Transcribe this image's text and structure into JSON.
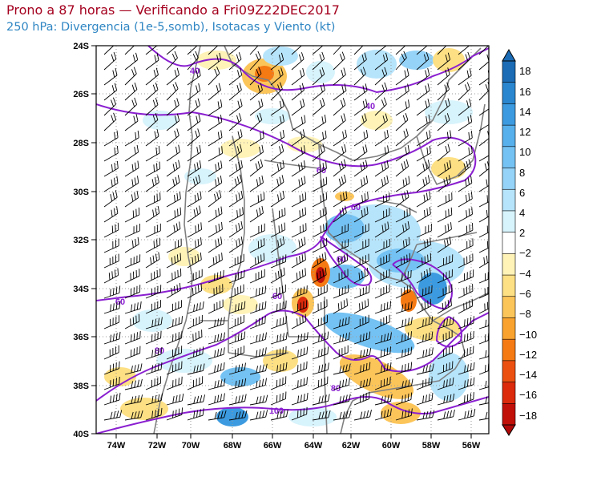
{
  "header": {
    "title": "Prono a 87 horas — Verificando a Fri09Z22DEC2017",
    "subtitle": "250 hPa: Divergencia (1e-5,somb), Isotacas y Viento (kt)"
  },
  "map": {
    "lat_labels": [
      "24S",
      "26S",
      "28S",
      "30S",
      "32S",
      "34S",
      "36S",
      "38S",
      "40S"
    ],
    "lon_labels": [
      "74W",
      "72W",
      "70W",
      "68W",
      "66W",
      "64W",
      "62W",
      "60W",
      "58W",
      "56W"
    ],
    "isotach_labels": [
      "40",
      "40",
      "60",
      "60",
      "60",
      "60",
      "60",
      "80",
      "80",
      "100"
    ]
  },
  "colorbar": {
    "labels": [
      "18",
      "16",
      "14",
      "12",
      "10",
      "8",
      "6",
      "4",
      "2",
      "−2",
      "−4",
      "−6",
      "−8",
      "−10",
      "−12",
      "−14",
      "−16",
      "−18"
    ],
    "colors": [
      "#1b6bb5",
      "#2a86cf",
      "#3c9be0",
      "#57afeb",
      "#74c2f3",
      "#95d3f8",
      "#b6e4fb",
      "#d7f3fc",
      "#ffffff",
      "#fff3b8",
      "#fde084",
      "#fcc55a",
      "#f9a22e",
      "#f57a14",
      "#ec5010",
      "#db2a0c",
      "#c01008"
    ]
  },
  "colors": {
    "title": "#a4001e",
    "subtitle": "#2f86c3",
    "isotach": "#8a1fd0",
    "border": "#808080"
  }
}
